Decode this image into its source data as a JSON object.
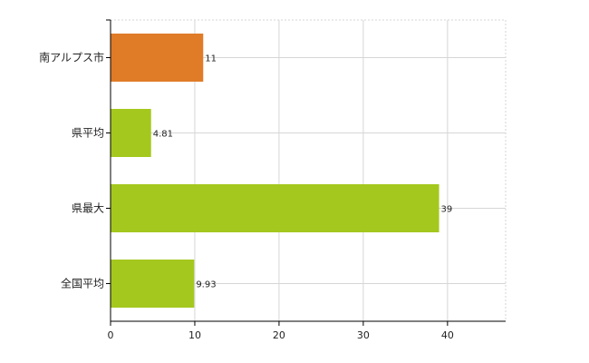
{
  "chart_data": {
    "type": "bar",
    "orientation": "horizontal",
    "categories": [
      "南アルプス市",
      "県平均",
      "県最大",
      "全国平均"
    ],
    "values": [
      11,
      4.81,
      39,
      9.93
    ],
    "value_labels": [
      "11",
      "4.81",
      "39",
      "9.93"
    ],
    "bar_colors": [
      "#e07b28",
      "#a4c81e",
      "#a4c81e",
      "#a4c81e"
    ],
    "xlim": [
      0,
      46.9
    ],
    "xticks": [
      0,
      10,
      20,
      30,
      40
    ],
    "xtick_labels": [
      "0",
      "10",
      "20",
      "30",
      "40"
    ],
    "grid": true,
    "title": "",
    "xlabel": "",
    "ylabel": ""
  }
}
